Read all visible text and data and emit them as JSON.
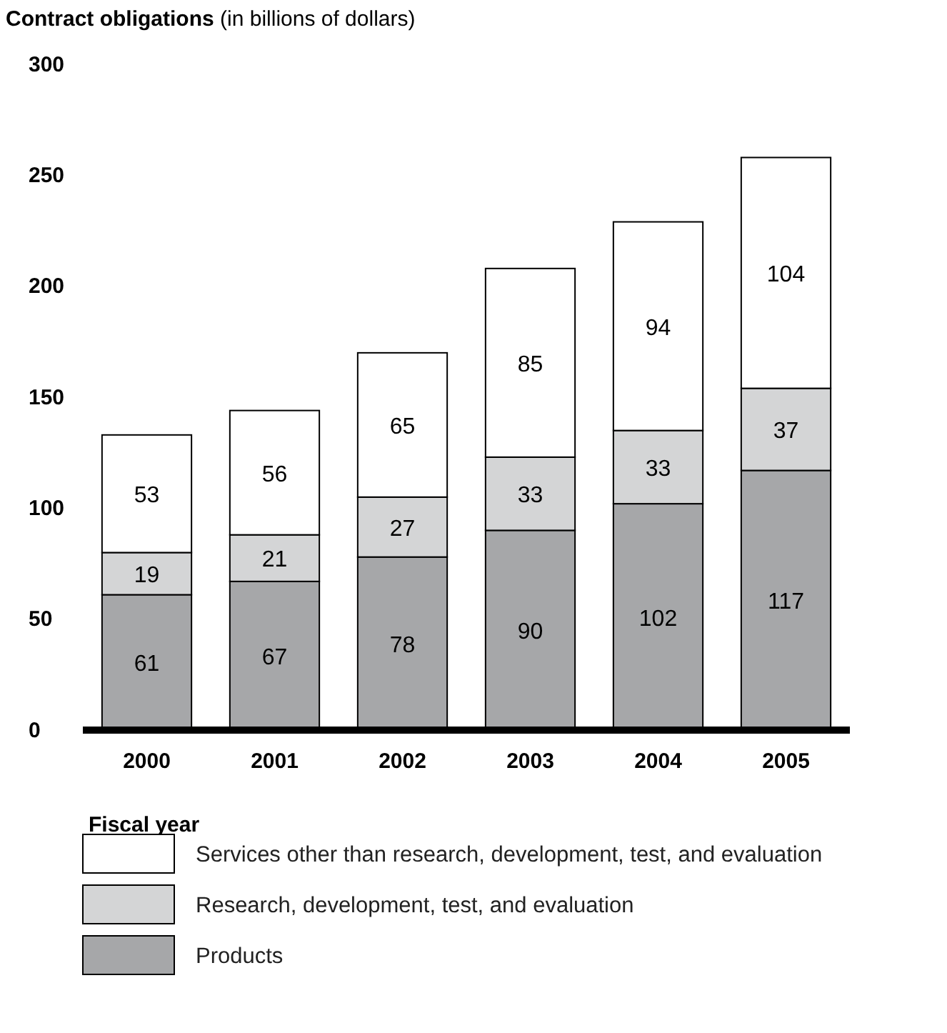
{
  "chart_data": {
    "type": "bar",
    "title": "Contract obligations",
    "subtitle": "(in billions of dollars)",
    "xlabel": "Fiscal year",
    "categories": [
      "2000",
      "2001",
      "2002",
      "2003",
      "2004",
      "2005"
    ],
    "series": [
      {
        "name": "Products",
        "color": "#a6a7a9",
        "values": [
          61,
          67,
          78,
          90,
          102,
          117
        ]
      },
      {
        "name": "Research, development, test, and evaluation",
        "color": "#d4d5d6",
        "values": [
          19,
          21,
          27,
          33,
          33,
          37
        ]
      },
      {
        "name": "Services other than research, development, test, and evaluation",
        "color": "#ffffff",
        "values": [
          53,
          56,
          65,
          85,
          94,
          104
        ]
      }
    ],
    "stacked": true,
    "data_labels": true,
    "legend": "bottom",
    "grid": false,
    "ylim": [
      0,
      300
    ],
    "yticks": [
      0,
      50,
      100,
      150,
      200,
      250,
      300
    ]
  }
}
